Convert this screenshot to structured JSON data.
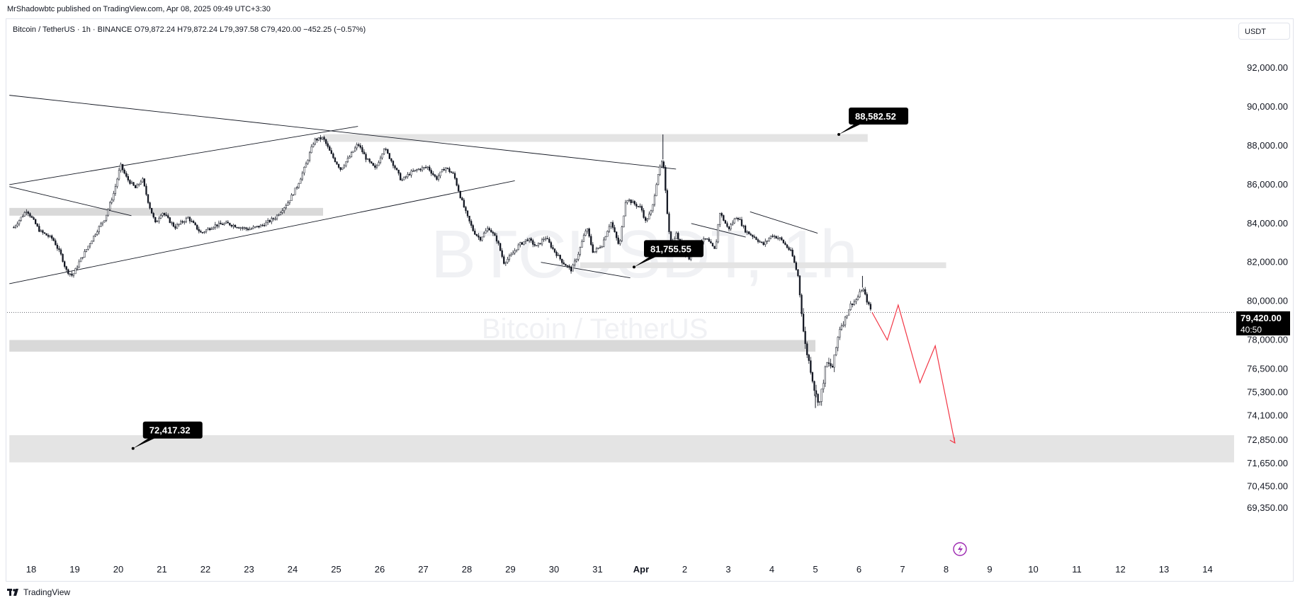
{
  "publisher_line": "MrShadowbtc published on TradingView.com, Apr 08, 2025 09:49 UTC+3:30",
  "legend": "Bitcoin / TetherUS · 1h · BINANCE  O79,872.24  H79,872.24  L79,397.58  C79,420.00  −452.25 (−0.57%)",
  "currency_button": "USDT",
  "footer_brand": "TradingView",
  "watermark": {
    "symbol": "BTCUSDT, 1h",
    "description": "Bitcoin / TetherUS"
  },
  "colors": {
    "candle": "#131722",
    "zone": "#d9d9d9",
    "zone_light": "#e4e4e4",
    "projection": "#f23645",
    "callout_bg": "#000000",
    "grid_text": "#131722"
  },
  "chart_data": {
    "type": "line",
    "symbol": "BTCUSDT",
    "exchange": "BINANCE",
    "interval": "1h",
    "last_price_label": "79,420.00",
    "countdown": "40:50",
    "ylim": [
      68500,
      93500
    ],
    "x_axis_ticks": [
      "18",
      "19",
      "20",
      "21",
      "22",
      "23",
      "24",
      "25",
      "26",
      "27",
      "28",
      "29",
      "30",
      "31",
      "Apr",
      "2",
      "3",
      "4",
      "5",
      "6",
      "7",
      "8",
      "9",
      "10",
      "11",
      "12",
      "13",
      "14"
    ],
    "y_axis_ticks": [
      "92,000.00",
      "90,000.00",
      "88,000.00",
      "86,000.00",
      "84,000.00",
      "82,000.00",
      "80,000.00",
      "78,000.00",
      "76,500.00",
      "75,300.00",
      "74,100.00",
      "72,850.00",
      "71,650.00",
      "70,450.00",
      "69,350.00"
    ],
    "price_path": [
      [
        17.6,
        83800
      ],
      [
        17.9,
        84700
      ],
      [
        18.2,
        83600
      ],
      [
        18.5,
        83200
      ],
      [
        18.7,
        82300
      ],
      [
        18.8,
        81600
      ],
      [
        18.95,
        81300
      ],
      [
        19.1,
        82000
      ],
      [
        19.3,
        82800
      ],
      [
        19.5,
        83600
      ],
      [
        19.7,
        84300
      ],
      [
        19.9,
        85600
      ],
      [
        20.05,
        87000
      ],
      [
        20.2,
        86300
      ],
      [
        20.4,
        85800
      ],
      [
        20.55,
        86300
      ],
      [
        20.7,
        85000
      ],
      [
        20.85,
        84000
      ],
      [
        21.0,
        84600
      ],
      [
        21.3,
        83800
      ],
      [
        21.6,
        84300
      ],
      [
        21.9,
        83500
      ],
      [
        22.2,
        83900
      ],
      [
        22.5,
        84000
      ],
      [
        22.8,
        83800
      ],
      [
        23.0,
        83700
      ],
      [
        23.3,
        83900
      ],
      [
        23.6,
        84300
      ],
      [
        23.9,
        85100
      ],
      [
        24.1,
        85900
      ],
      [
        24.3,
        87000
      ],
      [
        24.5,
        88300
      ],
      [
        24.7,
        88400
      ],
      [
        24.9,
        87500
      ],
      [
        25.1,
        86800
      ],
      [
        25.3,
        87400
      ],
      [
        25.5,
        88100
      ],
      [
        25.7,
        87300
      ],
      [
        25.9,
        86800
      ],
      [
        26.1,
        87900
      ],
      [
        26.3,
        87100
      ],
      [
        26.5,
        86200
      ],
      [
        26.7,
        86600
      ],
      [
        26.9,
        86800
      ],
      [
        27.1,
        86900
      ],
      [
        27.3,
        86300
      ],
      [
        27.5,
        86900
      ],
      [
        27.7,
        86500
      ],
      [
        27.85,
        85400
      ],
      [
        28.0,
        84400
      ],
      [
        28.15,
        83600
      ],
      [
        28.3,
        83200
      ],
      [
        28.5,
        83800
      ],
      [
        28.7,
        83100
      ],
      [
        28.85,
        82000
      ],
      [
        29.0,
        82300
      ],
      [
        29.2,
        82900
      ],
      [
        29.4,
        83200
      ],
      [
        29.6,
        82800
      ],
      [
        29.8,
        83300
      ],
      [
        30.0,
        82600
      ],
      [
        30.2,
        82000
      ],
      [
        30.4,
        81600
      ],
      [
        30.55,
        82400
      ],
      [
        30.75,
        83800
      ],
      [
        30.9,
        82500
      ],
      [
        31.1,
        82900
      ],
      [
        31.3,
        84100
      ],
      [
        31.5,
        82800
      ],
      [
        31.65,
        85300
      ],
      [
        31.85,
        85000
      ],
      [
        32.0,
        84800
      ],
      [
        32.1,
        84100
      ],
      [
        32.25,
        84700
      ],
      [
        32.38,
        86500
      ],
      [
        32.5,
        87300
      ],
      [
        32.58,
        85000
      ],
      [
        32.68,
        82800
      ],
      [
        32.8,
        83500
      ],
      [
        32.95,
        82700
      ],
      [
        33.1,
        82200
      ],
      [
        33.3,
        83000
      ],
      [
        33.5,
        83200
      ],
      [
        33.7,
        82600
      ],
      [
        33.8,
        84600
      ],
      [
        34.0,
        83700
      ],
      [
        34.2,
        84400
      ],
      [
        34.4,
        83600
      ],
      [
        34.6,
        83300
      ],
      [
        34.8,
        82900
      ],
      [
        35.0,
        83400
      ],
      [
        35.2,
        83200
      ],
      [
        35.45,
        82500
      ],
      [
        35.6,
        81300
      ],
      [
        35.75,
        77900
      ],
      [
        35.9,
        76400
      ],
      [
        36.0,
        75200
      ],
      [
        36.1,
        74800
      ],
      [
        36.25,
        76800
      ],
      [
        36.4,
        76600
      ],
      [
        36.55,
        78600
      ],
      [
        36.7,
        79200
      ],
      [
        36.8,
        79800
      ],
      [
        36.95,
        80100
      ],
      [
        37.08,
        80700
      ],
      [
        37.2,
        79900
      ],
      [
        37.3,
        79420
      ]
    ],
    "projection_path": [
      [
        37.3,
        79420
      ],
      [
        37.65,
        78000
      ],
      [
        37.9,
        79800
      ],
      [
        38.4,
        75800
      ],
      [
        38.75,
        77700
      ],
      [
        39.2,
        72700
      ]
    ],
    "support_resistance_zones": [
      {
        "from": 17.5,
        "to": 24.7,
        "low": 84400,
        "high": 84800
      },
      {
        "from": 17.5,
        "to": 36.0,
        "low": 77400,
        "high": 78000
      },
      {
        "from": 17.5,
        "to": 46.0,
        "low": 71700,
        "high": 73100
      },
      {
        "from": 24.7,
        "to": 37.2,
        "low": 88200,
        "high": 88600
      },
      {
        "from": 30.6,
        "to": 39.0,
        "low": 81700,
        "high": 82000
      }
    ],
    "trendlines": [
      {
        "x1": 17.5,
        "y1": 90600,
        "x2": 32.8,
        "y2": 86800
      },
      {
        "x1": 17.5,
        "y1": 86000,
        "x2": 25.5,
        "y2": 89000
      },
      {
        "x1": 17.5,
        "y1": 80900,
        "x2": 29.1,
        "y2": 86200
      },
      {
        "x1": 17.5,
        "y1": 85900,
        "x2": 20.3,
        "y2": 84400
      },
      {
        "x1": 29.7,
        "y1": 82000,
        "x2": 31.75,
        "y2": 81200
      },
      {
        "x1": 33.15,
        "y1": 84000,
        "x2": 34.4,
        "y2": 83300
      },
      {
        "x1": 34.5,
        "y1": 84600,
        "x2": 36.05,
        "y2": 83500
      }
    ],
    "callouts": [
      {
        "text": "88,582.52",
        "x": 36.7,
        "y": 88582.52
      },
      {
        "text": "81,755.55",
        "x": 32.0,
        "y": 81755.55
      },
      {
        "text": "72,417.32",
        "x": 20.5,
        "y": 72417.32
      }
    ]
  }
}
